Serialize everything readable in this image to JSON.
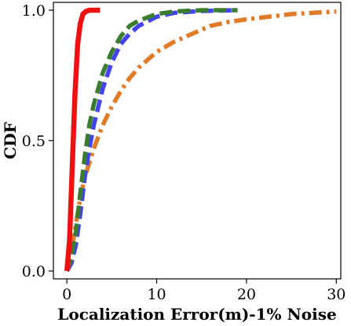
{
  "chart_data": {
    "type": "line",
    "title": "",
    "xlabel": "Localization Error(m)-1% Noise",
    "ylabel": "CDF",
    "xlim": [
      -1.5,
      30.5
    ],
    "ylim": [
      -0.03,
      1.03
    ],
    "xticks": [
      0,
      10,
      20,
      30
    ],
    "xtick_labels": [
      "0",
      "10",
      "20",
      "30"
    ],
    "yticks": [
      0.0,
      0.5,
      1.0
    ],
    "ytick_labels": [
      "0.0",
      "0.5",
      "1.0"
    ],
    "grid": false,
    "legend": "none",
    "series": [
      {
        "color": "#ee1111",
        "linestyle": "solid",
        "x": [
          0,
          0.3,
          0.6,
          0.9,
          1.2,
          1.5,
          1.8,
          2.1,
          2.5,
          3.0,
          3.7
        ],
        "y": [
          0.0,
          0.12,
          0.4,
          0.68,
          0.87,
          0.95,
          0.985,
          0.995,
          1.0,
          1.0,
          1.0
        ]
      },
      {
        "color": "#4444ee",
        "linestyle": "dashed",
        "x": [
          0,
          0.5,
          1,
          1.5,
          2,
          2.5,
          3,
          4,
          5,
          6,
          7,
          8,
          10,
          12,
          15,
          19
        ],
        "y": [
          0.0,
          0.03,
          0.1,
          0.22,
          0.36,
          0.47,
          0.56,
          0.7,
          0.8,
          0.87,
          0.91,
          0.94,
          0.975,
          0.99,
          0.997,
          1.0
        ]
      },
      {
        "color": "#3a7d2e",
        "linestyle": "dashed",
        "x": [
          0,
          0.5,
          1,
          1.5,
          2,
          2.5,
          3,
          4,
          5,
          6,
          7,
          8,
          10,
          12,
          15,
          19
        ],
        "y": [
          0.0,
          0.05,
          0.15,
          0.3,
          0.44,
          0.56,
          0.64,
          0.76,
          0.84,
          0.9,
          0.94,
          0.96,
          0.985,
          0.995,
          1.0,
          1.0
        ]
      },
      {
        "color": "#e07b28",
        "linestyle": "dashdot",
        "x": [
          0,
          0.5,
          1,
          1.5,
          2,
          3,
          4,
          5,
          6,
          7,
          8,
          9,
          10,
          12,
          14,
          16,
          18,
          20,
          25,
          30
        ],
        "y": [
          0.0,
          0.07,
          0.18,
          0.28,
          0.36,
          0.47,
          0.56,
          0.63,
          0.69,
          0.74,
          0.78,
          0.81,
          0.84,
          0.88,
          0.91,
          0.94,
          0.955,
          0.965,
          0.985,
          0.995
        ]
      }
    ]
  }
}
